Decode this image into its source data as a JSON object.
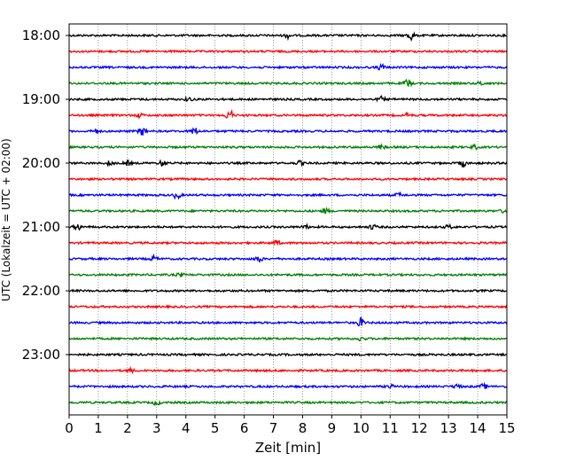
{
  "chart_data": {
    "type": "line",
    "title": "",
    "xlabel": "Zeit  [min]",
    "ylabel": "UTC (Lokalzeit = UTC + 02:00)",
    "x_range": [
      0,
      15
    ],
    "x_ticks": [
      "0",
      "1",
      "2",
      "3",
      "4",
      "5",
      "6",
      "7",
      "8",
      "9",
      "10",
      "11",
      "12",
      "13",
      "14",
      "15"
    ],
    "y_tick_labels": [
      "18:00",
      "19:00",
      "20:00",
      "21:00",
      "22:00",
      "23:00"
    ],
    "vertical_grid": "dotted",
    "trace_colors": [
      "#000000",
      "#ff0000",
      "#0000ff",
      "#008000"
    ],
    "traces": [
      {
        "start": "18:00",
        "color": "#000000",
        "events": [
          [
            7.5,
            0.4
          ],
          [
            11.7,
            0.8
          ]
        ]
      },
      {
        "start": "18:15",
        "color": "#ff0000",
        "events": []
      },
      {
        "start": "18:30",
        "color": "#0000ff",
        "events": [
          [
            10.7,
            0.5
          ]
        ]
      },
      {
        "start": "18:45",
        "color": "#008000",
        "events": [
          [
            11.6,
            0.7
          ],
          [
            14.1,
            0.3
          ]
        ]
      },
      {
        "start": "19:00",
        "color": "#000000",
        "events": [
          [
            4.1,
            0.3
          ],
          [
            10.7,
            0.4
          ]
        ]
      },
      {
        "start": "19:15",
        "color": "#ff0000",
        "events": [
          [
            2.4,
            0.3
          ],
          [
            5.5,
            1.0
          ],
          [
            11.6,
            0.3
          ]
        ]
      },
      {
        "start": "19:30",
        "color": "#0000ff",
        "events": [
          [
            0.9,
            0.3
          ],
          [
            2.5,
            0.7
          ],
          [
            4.3,
            0.6
          ]
        ]
      },
      {
        "start": "19:45",
        "color": "#008000",
        "events": [
          [
            10.7,
            0.3
          ],
          [
            13.9,
            0.3
          ]
        ]
      },
      {
        "start": "20:00",
        "color": "#000000",
        "events": [
          [
            1.4,
            0.4
          ],
          [
            2.0,
            0.4
          ],
          [
            3.2,
            0.5
          ],
          [
            7.9,
            0.3
          ],
          [
            13.5,
            0.6
          ]
        ]
      },
      {
        "start": "20:15",
        "color": "#ff0000",
        "events": []
      },
      {
        "start": "20:30",
        "color": "#0000ff",
        "events": [
          [
            3.7,
            0.6
          ],
          [
            11.3,
            0.3
          ]
        ]
      },
      {
        "start": "20:45",
        "color": "#008000",
        "events": [
          [
            8.8,
            0.4
          ],
          [
            14.9,
            0.3
          ]
        ]
      },
      {
        "start": "21:00",
        "color": "#000000",
        "events": [
          [
            0.3,
            0.5
          ],
          [
            8.1,
            0.3
          ],
          [
            10.4,
            0.4
          ],
          [
            13.0,
            0.3
          ]
        ]
      },
      {
        "start": "21:15",
        "color": "#ff0000",
        "events": [
          [
            7.1,
            0.4
          ]
        ]
      },
      {
        "start": "21:30",
        "color": "#0000ff",
        "events": [
          [
            2.9,
            0.4
          ],
          [
            6.5,
            0.5
          ]
        ]
      },
      {
        "start": "21:45",
        "color": "#008000",
        "events": [
          [
            3.8,
            0.3
          ]
        ]
      },
      {
        "start": "22:00",
        "color": "#000000",
        "events": []
      },
      {
        "start": "22:15",
        "color": "#ff0000",
        "events": []
      },
      {
        "start": "22:30",
        "color": "#0000ff",
        "events": [
          [
            10.0,
            0.7
          ]
        ]
      },
      {
        "start": "22:45",
        "color": "#008000",
        "events": [
          [
            10.0,
            0.3
          ]
        ]
      },
      {
        "start": "23:00",
        "color": "#000000",
        "events": []
      },
      {
        "start": "23:15",
        "color": "#ff0000",
        "events": [
          [
            2.1,
            0.3
          ]
        ]
      },
      {
        "start": "23:30",
        "color": "#0000ff",
        "events": [
          [
            11.0,
            0.3
          ],
          [
            13.3,
            0.4
          ],
          [
            14.2,
            0.4
          ]
        ]
      },
      {
        "start": "23:45",
        "color": "#008000",
        "events": [
          [
            3.0,
            0.4
          ]
        ]
      }
    ]
  }
}
